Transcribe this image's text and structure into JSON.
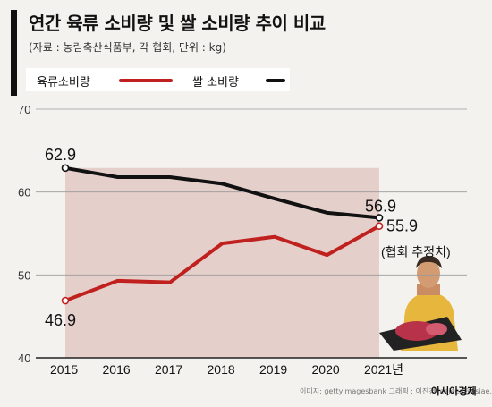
{
  "header": {
    "title": "연간 육류 소비량 및 쌀 소비량 추이 비교",
    "subtitle": "(자료 : 농림축산식품부, 각 협회, 단위 : kg)"
  },
  "legend": {
    "meat_label": "육류소비량",
    "rice_label": "쌀 소비량"
  },
  "colors": {
    "meat": "#c0211f",
    "rice": "#111111",
    "photo_tint": "#d9b3ad"
  },
  "annotation": {
    "estimate_note": "(협회 추정치)"
  },
  "footer": {
    "source": "이미지: gettyimagesbank   그래픽 : 이진경 leejeen@asiae.co.kr",
    "brand": "아시아경제"
  },
  "chart_data": {
    "type": "line",
    "x": [
      "2015",
      "2016",
      "2017",
      "2018",
      "2019",
      "2020",
      "2021년"
    ],
    "ylim": [
      40,
      70
    ],
    "yticks": [
      40,
      50,
      60,
      70
    ],
    "grid": true,
    "legend_position": "top-left",
    "series": [
      {
        "name": "육류소비량",
        "values": [
          46.9,
          49.3,
          49.1,
          53.8,
          54.6,
          52.4,
          55.9
        ],
        "labels": {
          "0": "46.9",
          "6": "55.9"
        }
      },
      {
        "name": "쌀 소비량",
        "values": [
          62.9,
          61.8,
          61.8,
          61.0,
          59.2,
          57.5,
          56.9
        ],
        "labels": {
          "0": "62.9",
          "6": "56.9"
        }
      }
    ]
  }
}
